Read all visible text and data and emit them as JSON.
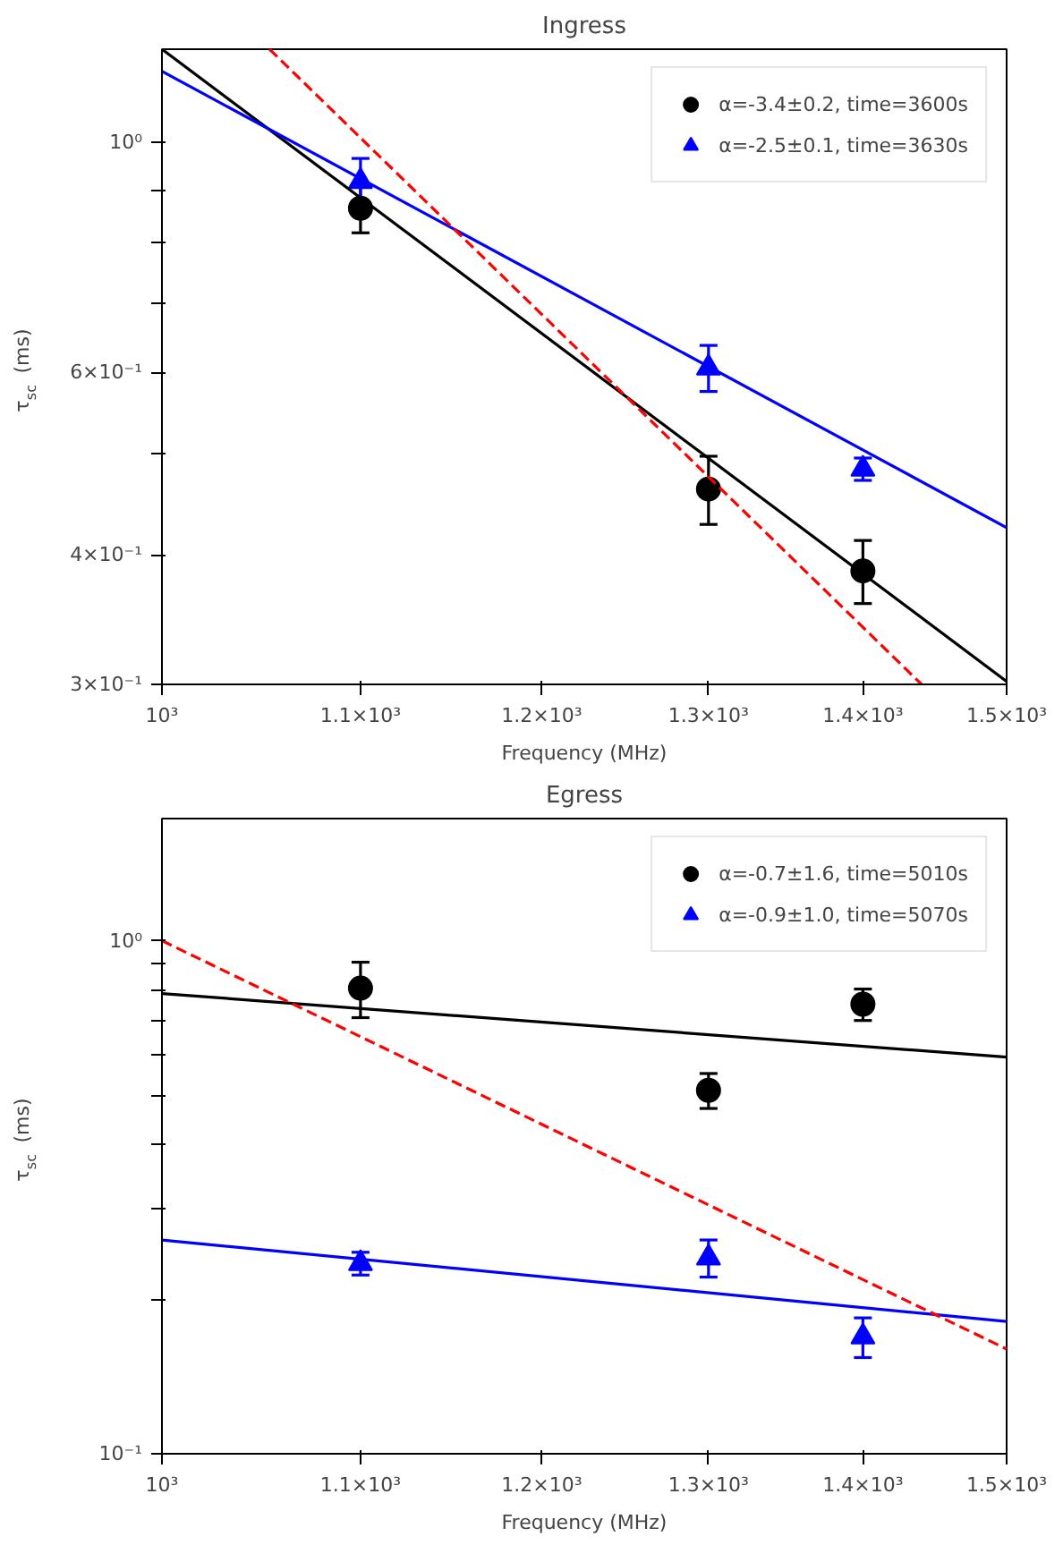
{
  "chart_data": [
    {
      "type": "scatter",
      "title": "Ingress",
      "xlabel": "Frequency (MHz)",
      "ylabel": "τ$_{sc}$ (ms)",
      "log": "xy",
      "grid": false,
      "legend": "top right",
      "xlim": [
        1000,
        1500
      ],
      "ylim": [
        0.3,
        1.23
      ],
      "xticks": [
        {
          "value": 1000,
          "label": "10³"
        },
        {
          "value": 1100,
          "label": "1.1×10³"
        },
        {
          "value": 1200,
          "label": "1.2×10³"
        },
        {
          "value": 1300,
          "label": "1.3×10³"
        },
        {
          "value": 1400,
          "label": "1.4×10³"
        },
        {
          "value": 1500,
          "label": "1.5×10³"
        }
      ],
      "yticks": [
        {
          "value": 0.3,
          "label": "3×10⁻¹"
        },
        {
          "value": 0.4,
          "label": "4×10⁻¹"
        },
        {
          "value": 0.5,
          "label": null
        },
        {
          "value": 0.6,
          "label": "6×10⁻¹"
        },
        {
          "value": 0.7,
          "label": null
        },
        {
          "value": 0.8,
          "label": null
        },
        {
          "value": 0.9,
          "label": null
        },
        {
          "value": 1,
          "label": "10⁰"
        }
      ],
      "series": [
        {
          "name": "α=-3.4±0.2, time=3600s",
          "marker": "circle",
          "color": "#000000",
          "x": [
            1100,
            1300,
            1400
          ],
          "values": [
            0.864,
            0.463,
            0.386
          ],
          "errors": [
            0.046,
            0.035,
            0.027
          ]
        },
        {
          "name": "α=-2.5±0.1, time=3630s",
          "marker": "triangle",
          "color": "#0000ff",
          "x": [
            1100,
            1300,
            1400
          ],
          "values": [
            0.917,
            0.606,
            0.484
          ],
          "errors": [
            0.048,
            0.031,
            0.012
          ]
        },
        {
          "type": "line",
          "line_style": "solid",
          "color": "#000000",
          "x": [
            1000,
            1500
          ],
          "values": [
            1.23,
            0.302
          ]
        },
        {
          "type": "line",
          "line_style": "solid",
          "color": "#0000ff",
          "x": [
            1000,
            1500
          ],
          "values": [
            1.171,
            0.425
          ]
        },
        {
          "type": "line",
          "line_style": "dashed",
          "color": "#ff0000",
          "x": [
            1053,
            1440
          ],
          "values": [
            1.23,
            0.3
          ]
        }
      ]
    },
    {
      "type": "scatter",
      "title": "Egress",
      "xlabel": "Frequency (MHz)",
      "ylabel": "τ$_{sc}$ (ms)",
      "log": "xy",
      "grid": false,
      "legend": "top right",
      "xlim": [
        1000,
        1500
      ],
      "ylim": [
        0.1,
        1.73
      ],
      "xticks": [
        {
          "value": 1000,
          "label": "10³"
        },
        {
          "value": 1100,
          "label": "1.1×10³"
        },
        {
          "value": 1200,
          "label": "1.2×10³"
        },
        {
          "value": 1300,
          "label": "1.3×10³"
        },
        {
          "value": 1400,
          "label": "1.4×10³"
        },
        {
          "value": 1500,
          "label": "1.5×10³"
        }
      ],
      "yticks": [
        {
          "value": 0.1,
          "label": "10⁻¹"
        },
        {
          "value": 0.2,
          "label": null
        },
        {
          "value": 0.3,
          "label": null
        },
        {
          "value": 0.4,
          "label": null
        },
        {
          "value": 0.5,
          "label": null
        },
        {
          "value": 0.6,
          "label": null
        },
        {
          "value": 0.7,
          "label": null
        },
        {
          "value": 0.8,
          "label": null
        },
        {
          "value": 0.9,
          "label": null
        },
        {
          "value": 1,
          "label": "10⁰"
        }
      ],
      "series": [
        {
          "name": "α=-0.7±1.6, time=5010s",
          "marker": "circle",
          "color": "#000000",
          "x": [
            1100,
            1300,
            1400
          ],
          "values": [
            0.808,
            0.511,
            0.752
          ],
          "errors": [
            0.1,
            0.04,
            0.053
          ]
        },
        {
          "name": "α=-0.9±1.0, time=5070s",
          "marker": "triangle",
          "color": "#0000ff",
          "x": [
            1100,
            1300,
            1400
          ],
          "values": [
            0.235,
            0.241,
            0.169
          ],
          "errors": [
            0.012,
            0.02,
            0.015
          ]
        },
        {
          "type": "line",
          "line_style": "solid",
          "color": "#000000",
          "x": [
            1000,
            1500
          ],
          "values": [
            0.789,
            0.593
          ]
        },
        {
          "type": "line",
          "line_style": "solid",
          "color": "#0000ff",
          "x": [
            1000,
            1500
          ],
          "values": [
            0.261,
            0.181
          ]
        },
        {
          "type": "line",
          "line_style": "dashed",
          "color": "#ff0000",
          "x": [
            1000,
            1500
          ],
          "values": [
            1.0,
            0.16
          ]
        }
      ]
    }
  ]
}
